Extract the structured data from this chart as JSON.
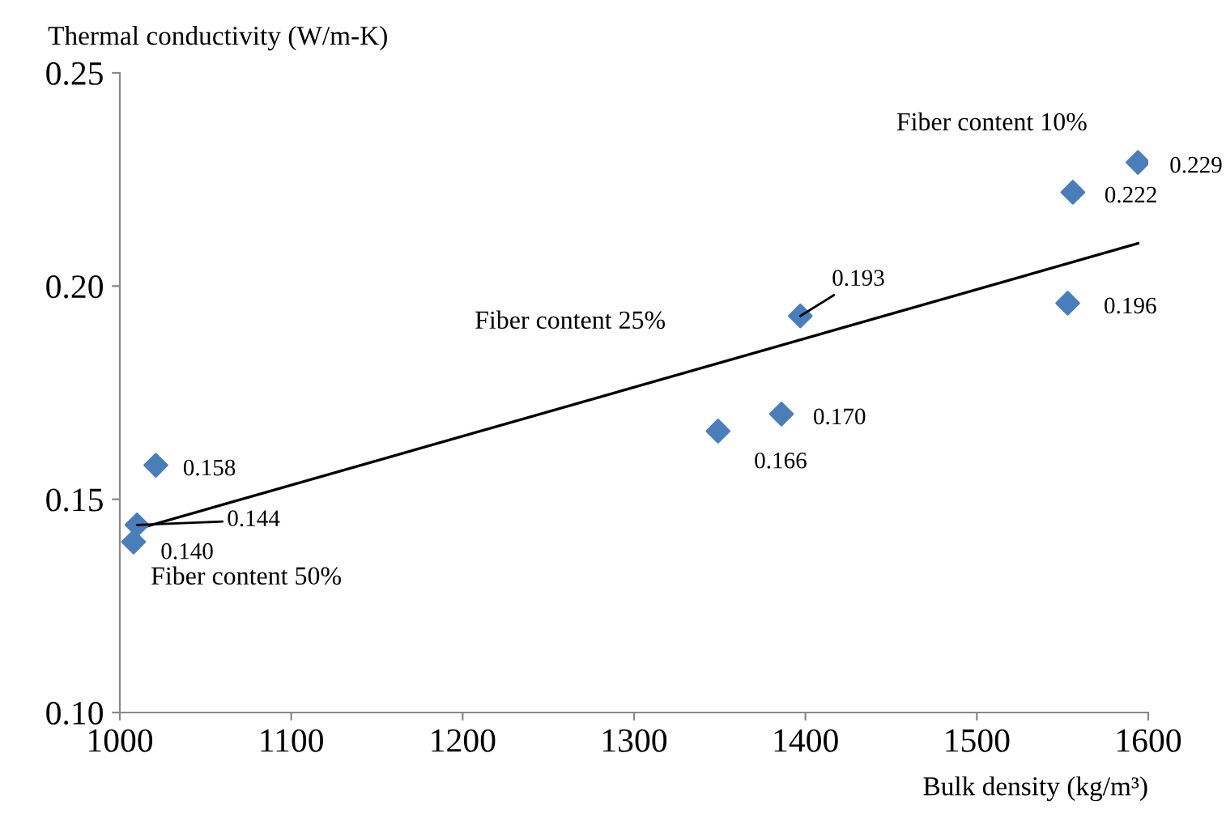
{
  "chart_data": {
    "type": "scatter",
    "xlabel": "Bulk density (kg/m³)",
    "ylabel": "Thermal conductivity (W/m-K)",
    "xlim": [
      1000,
      1600
    ],
    "xticks": [
      1000,
      1100,
      1200,
      1300,
      1400,
      1500,
      1600
    ],
    "ylim": [
      0.1,
      0.25
    ],
    "yticks": [
      {
        "value": 0.1,
        "label": "0.10"
      },
      {
        "value": 0.15,
        "label": "0.15"
      },
      {
        "value": 0.2,
        "label": "0.20"
      },
      {
        "value": 0.25,
        "label": "0.25"
      }
    ],
    "grid": false,
    "legend": false,
    "series": [
      {
        "marker": "diamond",
        "color": "#4a7ebb",
        "x": [
          1008,
          1010,
          1021,
          1349,
          1386,
          1397,
          1553,
          1556,
          1594
        ],
        "values": [
          0.14,
          0.144,
          0.158,
          0.166,
          0.17,
          0.193,
          0.196,
          0.222,
          0.229
        ],
        "value_labels": [
          "0.140",
          "0.144",
          "0.158",
          "0.166",
          "0.170",
          "0.193",
          "0.196",
          "0.222",
          "0.229"
        ]
      },
      {
        "type": "line",
        "color": "#000000",
        "x": [
          1010,
          1594
        ],
        "values": [
          0.143,
          0.21
        ]
      }
    ],
    "annotations": [
      "Fiber content 10%",
      "Fiber content 25%",
      "Fiber content 50%"
    ]
  }
}
